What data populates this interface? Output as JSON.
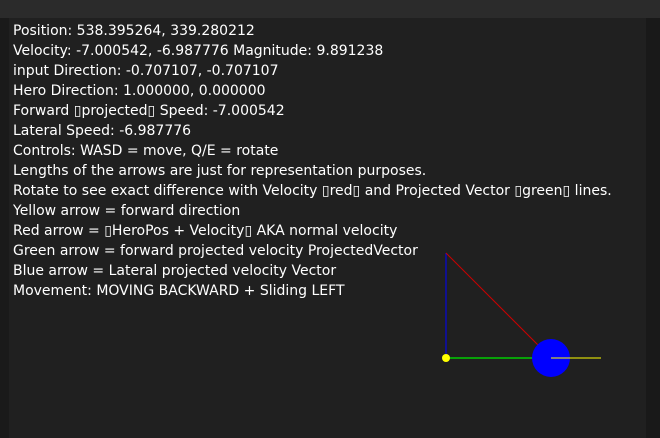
{
  "debug_lines": [
    "Position: 538.395264, 339.280212",
    "Velocity: -7.000542, -6.987776 Magnitude: 9.891238",
    "input Direction: -0.707107, -0.707107",
    "Hero Direction: 1.000000, 0.000000",
    "Forward ▯projected▯ Speed: -7.000542",
    "Lateral Speed: -6.987776",
    "Controls: WASD = move, Q/E = rotate",
    "Lengths of the arrows are just for representation purposes.",
    "Rotate to see exact difference with Velocity ▯red▯ and Projected Vector ▯green▯ lines.",
    "Yellow arrow = forward direction",
    "Red arrow = ▯HeroPos + Velocity▯ AKA normal velocity",
    "Green arrow = forward projected velocity ProjectedVector",
    "Blue arrow = Lateral projected velocity Vector",
    "Movement: MOVING BACKWARD + Sliding LEFT"
  ],
  "colors": {
    "background": "#202020",
    "text": "#ffffff",
    "hero": "#0000ff",
    "forward_arrow": "#ffff00",
    "velocity_arrow": "#cc0000",
    "projected_arrow": "#00cc00",
    "lateral_arrow": "#0000ff"
  }
}
